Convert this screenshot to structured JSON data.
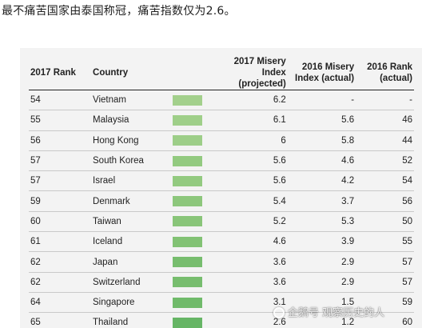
{
  "caption": "最不痛苦国家由泰国称冠，痛苦指数仅为2.6。",
  "table": {
    "headers": {
      "rank_2017": "2017 Rank",
      "country": "Country",
      "index_2017_line1": "2017 Misery Index",
      "index_2017_line2": "(projected)",
      "index_2016_line1": "2016 Misery",
      "index_2016_line2": "Index (actual)",
      "rank_2016_line1": "2016 Rank",
      "rank_2016_line2": "(actual)"
    },
    "rows": [
      {
        "rank_2017": "54",
        "country": "Vietnam",
        "index_2017": "6.2",
        "index_2016": "-",
        "rank_2016": "-",
        "bar_color": "#a3d08c"
      },
      {
        "rank_2017": "55",
        "country": "Malaysia",
        "index_2017": "6.1",
        "index_2016": "5.6",
        "rank_2016": "46",
        "bar_color": "#9fcf89"
      },
      {
        "rank_2017": "56",
        "country": "Hong Kong",
        "index_2017": "6",
        "index_2016": "5.8",
        "rank_2016": "44",
        "bar_color": "#9dce88"
      },
      {
        "rank_2017": "57",
        "country": "South Korea",
        "index_2017": "5.6",
        "index_2016": "4.6",
        "rank_2016": "52",
        "bar_color": "#93ca80"
      },
      {
        "rank_2017": "57",
        "country": "Israel",
        "index_2017": "5.6",
        "index_2016": "4.2",
        "rank_2016": "54",
        "bar_color": "#93ca80"
      },
      {
        "rank_2017": "59",
        "country": "Denmark",
        "index_2017": "5.4",
        "index_2016": "3.7",
        "rank_2016": "56",
        "bar_color": "#8dc77c"
      },
      {
        "rank_2017": "60",
        "country": "Taiwan",
        "index_2017": "5.2",
        "index_2016": "5.3",
        "rank_2016": "50",
        "bar_color": "#89c579"
      },
      {
        "rank_2017": "61",
        "country": "Iceland",
        "index_2017": "4.6",
        "index_2016": "3.9",
        "rank_2016": "55",
        "bar_color": "#82c274"
      },
      {
        "rank_2017": "62",
        "country": "Japan",
        "index_2017": "3.6",
        "index_2016": "2.9",
        "rank_2016": "57",
        "bar_color": "#77bd6e"
      },
      {
        "rank_2017": "62",
        "country": "Switzerland",
        "index_2017": "3.6",
        "index_2016": "2.9",
        "rank_2016": "57",
        "bar_color": "#77bd6e"
      },
      {
        "rank_2017": "64",
        "country": "Singapore",
        "index_2017": "3.1",
        "index_2016": "1.5",
        "rank_2016": "59",
        "bar_color": "#70ba6a"
      },
      {
        "rank_2017": "65",
        "country": "Thailand",
        "index_2017": "2.6",
        "index_2016": "1.2",
        "rank_2016": "60",
        "bar_color": "#66b565"
      }
    ]
  },
  "watermark": {
    "icon": "penguin-logo-icon",
    "text": "企鹅号 观察历史的人"
  }
}
